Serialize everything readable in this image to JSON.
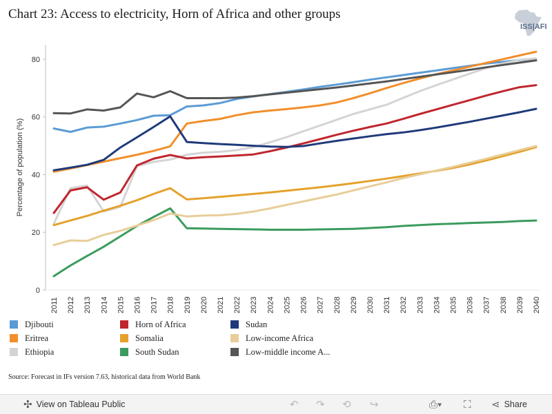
{
  "header": {
    "title": "Chart 23: Access to electricity, Horn of Africa and other groups",
    "logo_text": "ISS|AFI"
  },
  "source": "Source: Forecast in IFs version 7.63, historical data from World Bank",
  "toolbar": {
    "view_label": "View on Tableau Public",
    "share_label": "Share",
    "icons": [
      "tableau-icon",
      "undo-icon",
      "redo-icon",
      "revert-icon",
      "forward-icon",
      "download-icon",
      "fullscreen-icon",
      "share-icon"
    ]
  },
  "chart_data": {
    "type": "line",
    "title": "Chart 23: Access to electricity, Horn of Africa and other groups",
    "xlabel": "",
    "ylabel": "Percentage of population (%)",
    "ylim": [
      0,
      85
    ],
    "yticks": [
      0,
      20,
      40,
      60,
      80
    ],
    "grid": "horizontal off, left axis line",
    "legend_position": "bottom",
    "x": [
      2011,
      2012,
      2013,
      2014,
      2015,
      2016,
      2017,
      2018,
      2019,
      2020,
      2021,
      2022,
      2023,
      2024,
      2025,
      2026,
      2027,
      2028,
      2029,
      2030,
      2031,
      2032,
      2033,
      2034,
      2035,
      2036,
      2037,
      2038,
      2039,
      2040
    ],
    "x_labels": [
      "2011",
      "2012",
      "2013",
      "2014",
      "2015",
      "2016",
      "2017",
      "2018",
      "2019",
      "2020",
      "2021",
      "2022",
      "2023",
      "2024",
      "2025",
      "2026",
      "2027",
      "2028",
      "2029",
      "2030",
      "2031",
      "2032",
      "2033",
      "2034",
      "2035",
      "2036",
      "2037",
      "2038",
      "2039",
      "2040"
    ],
    "series": [
      {
        "name": "Djibouti",
        "color": "#5b9bd5",
        "values": [
          56,
          54.8,
          56.3,
          56.6,
          57.7,
          58.9,
          60.4,
          60.6,
          63.6,
          64.0,
          64.8,
          66.2,
          67.1,
          67.9,
          68.7,
          69.5,
          70.4,
          71.2,
          72.0,
          72.9,
          73.7,
          74.5,
          75.3,
          76.1,
          76.9,
          77.7,
          78.5,
          79.1,
          79.7,
          80.2
        ]
      },
      {
        "name": "Eritrea",
        "color": "#f28e2b",
        "values": [
          41,
          42.1,
          43.3,
          44.5,
          45.7,
          46.9,
          48.2,
          49.8,
          57.7,
          58.6,
          59.3,
          60.6,
          61.6,
          62.2,
          62.7,
          63.3,
          64.0,
          65.0,
          66.5,
          68.2,
          70.0,
          71.7,
          73.3,
          74.8,
          76.1,
          77.4,
          78.7,
          80.0,
          81.3,
          82.6
        ]
      },
      {
        "name": "Ethiopia",
        "color": "#d4d4d4",
        "values": [
          23,
          35.3,
          36.2,
          27.2,
          28.9,
          42.9,
          44.4,
          45.2,
          46.9,
          47.6,
          47.9,
          48.5,
          49.5,
          51.2,
          53.0,
          55.0,
          57.0,
          59.0,
          61.0,
          62.6,
          64.2,
          66.6,
          68.9,
          71.0,
          73.0,
          75.0,
          76.9,
          78.5,
          79.8,
          80.3
        ]
      },
      {
        "name": "Horn of Africa",
        "color": "#c0262d",
        "values": [
          26.7,
          34.5,
          35.6,
          31.3,
          33.8,
          43.2,
          45.5,
          46.8,
          45.6,
          46.0,
          46.3,
          46.6,
          47.0,
          48.1,
          49.4,
          50.8,
          52.3,
          53.8,
          55.2,
          56.5,
          57.7,
          59.3,
          61.0,
          62.6,
          64.2,
          65.8,
          67.4,
          68.9,
          70.3,
          71.0
        ]
      },
      {
        "name": "Somalia",
        "color": "#e5a12b",
        "values": [
          22.5,
          24.1,
          25.7,
          27.5,
          29.2,
          31.1,
          33.3,
          35.3,
          31.4,
          31.8,
          32.3,
          32.8,
          33.3,
          33.8,
          34.4,
          35.0,
          35.6,
          36.3,
          37.0,
          37.8,
          38.6,
          39.5,
          40.4,
          41.3,
          42.3,
          43.5,
          44.9,
          46.4,
          47.9,
          49.5
        ]
      },
      {
        "name": "South Sudan",
        "color": "#3b9b5d",
        "values": [
          4.8,
          8.5,
          11.8,
          15,
          18.6,
          22.2,
          25.3,
          28.3,
          21.4,
          21.3,
          21.2,
          21.1,
          21.0,
          20.9,
          20.9,
          20.9,
          21.0,
          21.1,
          21.2,
          21.5,
          21.8,
          22.2,
          22.5,
          22.8,
          23.0,
          23.2,
          23.4,
          23.6,
          23.9,
          24.1
        ]
      },
      {
        "name": "Sudan",
        "color": "#1f3a7a",
        "values": [
          41.5,
          42.4,
          43.4,
          45.1,
          49.4,
          52.9,
          56.5,
          60.2,
          51.3,
          50.9,
          50.6,
          50.3,
          50.0,
          49.7,
          49.6,
          49.9,
          50.8,
          51.7,
          52.5,
          53.3,
          54.0,
          54.6,
          55.4,
          56.3,
          57.3,
          58.3,
          59.4,
          60.5,
          61.6,
          62.8
        ]
      },
      {
        "name": "Low-income Africa",
        "color": "#e8cd99",
        "values": [
          15.6,
          17.2,
          17,
          19.1,
          20.5,
          22.3,
          24.2,
          26.5,
          25.5,
          25.8,
          25.9,
          26.4,
          27.2,
          28.3,
          29.5,
          30.7,
          31.9,
          33.1,
          34.5,
          35.9,
          37.3,
          38.8,
          40.1,
          41.4,
          42.7,
          44.1,
          45.5,
          47.0,
          48.5,
          49.9
        ]
      },
      {
        "name": "Low-middle income A...",
        "color": "#555555",
        "values": [
          61.3,
          61.2,
          62.6,
          62.2,
          63.3,
          68.1,
          66.8,
          68.9,
          66.5,
          66.5,
          66.5,
          66.7,
          67.2,
          67.8,
          68.4,
          69.0,
          69.6,
          70.2,
          70.9,
          71.6,
          72.3,
          73.1,
          73.9,
          74.7,
          75.5,
          76.3,
          77.2,
          78.0,
          78.8,
          79.6
        ]
      }
    ]
  },
  "legend": {
    "items": [
      {
        "label": "Djibouti",
        "color": "#5b9bd5"
      },
      {
        "label": "Eritrea",
        "color": "#f28e2b"
      },
      {
        "label": "Ethiopia",
        "color": "#d4d4d4"
      },
      {
        "label": "Horn of Africa",
        "color": "#c0262d"
      },
      {
        "label": "Somalia",
        "color": "#e5a12b"
      },
      {
        "label": "South Sudan",
        "color": "#3b9b5d"
      },
      {
        "label": "Sudan",
        "color": "#1f3a7a"
      },
      {
        "label": "Low-income Africa",
        "color": "#e8cd99"
      },
      {
        "label": "Low-middle income A...",
        "color": "#555555"
      }
    ]
  }
}
